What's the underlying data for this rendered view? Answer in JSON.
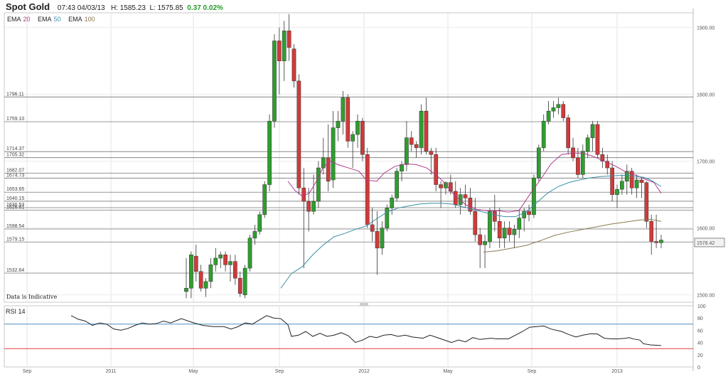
{
  "header": {
    "symbol": "Spot Gold",
    "datetime": "07:43 04/03/13",
    "high": "H: 1585.23",
    "low": "L: 1575.85",
    "change": "0.37",
    "change_pct": "0.02%"
  },
  "legend": [
    {
      "label": "EMA",
      "period": "20",
      "color": "#b03a8c"
    },
    {
      "label": "EMA",
      "period": "50",
      "color": "#3a8fa8"
    },
    {
      "label": "EMA",
      "period": "100",
      "color": "#8a7a50"
    }
  ],
  "note": "Data is Indicative",
  "rsi_label": "RSI 14",
  "last_price_label": "1578.42",
  "colors": {
    "up": "#2f9e2f",
    "down": "#d03a3a",
    "rsi": "#222222",
    "rsi_upper": "#4a90c0",
    "rsi_lower": "#e04040"
  },
  "chart_data": {
    "type": "candlestick",
    "price_axis": {
      "ticks": [
        1500,
        1600,
        1700,
        1800,
        1900
      ],
      "tick_labels": [
        "1500.00",
        "1600.00",
        "1700.00",
        "1800.00",
        "1900.00"
      ],
      "range": [
        1489,
        1922
      ]
    },
    "time_axis": {
      "labels": [
        "Sep",
        "2011",
        "May",
        "Sep",
        "2012",
        "May",
        "Sep",
        "2013"
      ]
    },
    "levels": [
      {
        "value": 1796.11,
        "label": "1796.11"
      },
      {
        "value": 1759.1,
        "label": "1759.10"
      },
      {
        "value": 1714.37,
        "label": "1714.37"
      },
      {
        "value": 1705.32,
        "label": "1705.32"
      },
      {
        "value": 1682.07,
        "label": "1682.07"
      },
      {
        "value": 1674.73,
        "label": "1674.73"
      },
      {
        "value": 1653.65,
        "label": "1653.65"
      },
      {
        "value": 1640.15,
        "label": "1640.15"
      },
      {
        "value": 1630.53,
        "label": "1630.53"
      },
      {
        "value": 1626.61,
        "label": "1626.61"
      },
      {
        "value": 1598.54,
        "label": "1598.54"
      },
      {
        "value": 1579.15,
        "label": "1579.15"
      },
      {
        "value": 1532.64,
        "label": "1532.64"
      }
    ],
    "candles": [
      [
        1505,
        1555,
        1495,
        1510
      ],
      [
        1510,
        1565,
        1495,
        1560
      ],
      [
        1558,
        1575,
        1520,
        1535
      ],
      [
        1535,
        1545,
        1505,
        1510
      ],
      [
        1510,
        1525,
        1497,
        1520
      ],
      [
        1520,
        1555,
        1510,
        1545
      ],
      [
        1545,
        1570,
        1535,
        1555
      ],
      [
        1555,
        1565,
        1540,
        1560
      ],
      [
        1560,
        1565,
        1535,
        1545
      ],
      [
        1545,
        1560,
        1520,
        1550
      ],
      [
        1550,
        1560,
        1515,
        1525
      ],
      [
        1525,
        1535,
        1497,
        1502
      ],
      [
        1500,
        1545,
        1495,
        1540
      ],
      [
        1540,
        1590,
        1535,
        1585
      ],
      [
        1585,
        1605,
        1575,
        1595
      ],
      [
        1595,
        1625,
        1590,
        1620
      ],
      [
        1620,
        1670,
        1615,
        1665
      ],
      [
        1665,
        1770,
        1655,
        1760
      ],
      [
        1760,
        1890,
        1750,
        1880
      ],
      [
        1880,
        1900,
        1800,
        1850
      ],
      [
        1850,
        1910,
        1820,
        1895
      ],
      [
        1895,
        1920,
        1850,
        1870
      ],
      [
        1868,
        1875,
        1810,
        1820
      ],
      [
        1820,
        1830,
        1650,
        1660
      ],
      [
        1660,
        1690,
        1540,
        1640
      ],
      [
        1640,
        1660,
        1595,
        1625
      ],
      [
        1625,
        1680,
        1620,
        1640
      ],
      [
        1640,
        1700,
        1630,
        1690
      ],
      [
        1690,
        1735,
        1680,
        1705
      ],
      [
        1705,
        1755,
        1655,
        1670
      ],
      [
        1672,
        1775,
        1660,
        1750
      ],
      [
        1750,
        1775,
        1730,
        1760
      ],
      [
        1760,
        1805,
        1740,
        1795
      ],
      [
        1795,
        1800,
        1720,
        1730
      ],
      [
        1730,
        1745,
        1690,
        1740
      ],
      [
        1740,
        1770,
        1720,
        1760
      ],
      [
        1760,
        1765,
        1700,
        1710
      ],
      [
        1710,
        1720,
        1600,
        1605
      ],
      [
        1605,
        1630,
        1580,
        1595
      ],
      [
        1595,
        1625,
        1530,
        1570
      ],
      [
        1570,
        1610,
        1560,
        1600
      ],
      [
        1600,
        1635,
        1595,
        1630
      ],
      [
        1630,
        1650,
        1620,
        1645
      ],
      [
        1645,
        1690,
        1640,
        1685
      ],
      [
        1685,
        1700,
        1670,
        1695
      ],
      [
        1695,
        1760,
        1685,
        1735
      ],
      [
        1735,
        1745,
        1715,
        1725
      ],
      [
        1725,
        1730,
        1705,
        1720
      ],
      [
        1720,
        1785,
        1710,
        1775
      ],
      [
        1775,
        1795,
        1710,
        1715
      ],
      [
        1715,
        1720,
        1680,
        1710
      ],
      [
        1710,
        1720,
        1655,
        1665
      ],
      [
        1665,
        1670,
        1630,
        1660
      ],
      [
        1660,
        1670,
        1650,
        1668
      ],
      [
        1668,
        1680,
        1650,
        1655
      ],
      [
        1655,
        1670,
        1630,
        1635
      ],
      [
        1635,
        1660,
        1620,
        1650
      ],
      [
        1650,
        1665,
        1630,
        1645
      ],
      [
        1645,
        1660,
        1620,
        1625
      ],
      [
        1625,
        1645,
        1580,
        1590
      ],
      [
        1590,
        1600,
        1540,
        1575
      ],
      [
        1575,
        1590,
        1540,
        1580
      ],
      [
        1580,
        1630,
        1570,
        1625
      ],
      [
        1625,
        1650,
        1595,
        1610
      ],
      [
        1610,
        1630,
        1570,
        1585
      ],
      [
        1585,
        1610,
        1570,
        1600
      ],
      [
        1600,
        1610,
        1580,
        1590
      ],
      [
        1590,
        1605,
        1570,
        1598
      ],
      [
        1598,
        1628,
        1585,
        1615
      ],
      [
        1615,
        1630,
        1595,
        1625
      ],
      [
        1625,
        1635,
        1610,
        1620
      ],
      [
        1620,
        1680,
        1615,
        1675
      ],
      [
        1675,
        1725,
        1670,
        1720
      ],
      [
        1720,
        1770,
        1715,
        1760
      ],
      [
        1760,
        1790,
        1755,
        1775
      ],
      [
        1775,
        1790,
        1765,
        1780
      ],
      [
        1780,
        1795,
        1770,
        1785
      ],
      [
        1785,
        1790,
        1760,
        1765
      ],
      [
        1765,
        1770,
        1710,
        1720
      ],
      [
        1720,
        1735,
        1700,
        1705
      ],
      [
        1705,
        1720,
        1675,
        1680
      ],
      [
        1680,
        1725,
        1675,
        1715
      ],
      [
        1715,
        1740,
        1705,
        1735
      ],
      [
        1735,
        1760,
        1715,
        1755
      ],
      [
        1755,
        1760,
        1705,
        1710
      ],
      [
        1710,
        1720,
        1690,
        1700
      ],
      [
        1700,
        1710,
        1680,
        1690
      ],
      [
        1690,
        1700,
        1640,
        1650
      ],
      [
        1650,
        1665,
        1630,
        1658
      ],
      [
        1658,
        1680,
        1650,
        1670
      ],
      [
        1670,
        1695,
        1650,
        1685
      ],
      [
        1685,
        1690,
        1650,
        1660
      ],
      [
        1660,
        1680,
        1645,
        1672
      ],
      [
        1672,
        1675,
        1645,
        1668
      ],
      [
        1668,
        1670,
        1600,
        1610
      ],
      [
        1610,
        1620,
        1560,
        1580
      ],
      [
        1580,
        1620,
        1570,
        1578
      ],
      [
        1578,
        1590,
        1570,
        1582
      ]
    ],
    "ema20": [
      [
        405,
        1670
      ],
      [
        415,
        1656
      ],
      [
        425,
        1648
      ],
      [
        435,
        1652
      ],
      [
        445,
        1670
      ],
      [
        455,
        1692
      ],
      [
        465,
        1700
      ],
      [
        475,
        1695
      ],
      [
        490,
        1690
      ],
      [
        505,
        1685
      ],
      [
        515,
        1672
      ],
      [
        530,
        1670
      ],
      [
        540,
        1682
      ],
      [
        555,
        1692
      ],
      [
        570,
        1696
      ],
      [
        585,
        1695
      ],
      [
        600,
        1690
      ],
      [
        615,
        1678
      ],
      [
        625,
        1668
      ],
      [
        640,
        1648
      ],
      [
        655,
        1635
      ],
      [
        670,
        1628
      ],
      [
        685,
        1626
      ],
      [
        700,
        1626
      ],
      [
        715,
        1624
      ],
      [
        730,
        1626
      ],
      [
        745,
        1650
      ],
      [
        760,
        1672
      ],
      [
        775,
        1696
      ],
      [
        790,
        1710
      ],
      [
        805,
        1712
      ],
      [
        820,
        1712
      ],
      [
        835,
        1707
      ],
      [
        850,
        1700
      ],
      [
        865,
        1693
      ],
      [
        880,
        1684
      ],
      [
        895,
        1679
      ],
      [
        910,
        1672
      ],
      [
        920,
        1668
      ],
      [
        930,
        1652
      ]
    ],
    "ema50": [
      [
        395,
        1510
      ],
      [
        410,
        1532
      ],
      [
        425,
        1542
      ],
      [
        440,
        1560
      ],
      [
        455,
        1575
      ],
      [
        470,
        1587
      ],
      [
        485,
        1592
      ],
      [
        500,
        1598
      ],
      [
        515,
        1603
      ],
      [
        530,
        1614
      ],
      [
        545,
        1624
      ],
      [
        560,
        1630
      ],
      [
        575,
        1633
      ],
      [
        590,
        1636
      ],
      [
        605,
        1637
      ],
      [
        620,
        1637
      ],
      [
        635,
        1636
      ],
      [
        650,
        1632
      ],
      [
        665,
        1628
      ],
      [
        680,
        1624
      ],
      [
        695,
        1620
      ],
      [
        710,
        1617
      ],
      [
        725,
        1617
      ],
      [
        740,
        1624
      ],
      [
        755,
        1638
      ],
      [
        770,
        1652
      ],
      [
        785,
        1662
      ],
      [
        800,
        1668
      ],
      [
        815,
        1672
      ],
      [
        830,
        1675
      ],
      [
        845,
        1677
      ],
      [
        860,
        1678
      ],
      [
        875,
        1679
      ],
      [
        890,
        1678
      ],
      [
        905,
        1676
      ],
      [
        915,
        1672
      ],
      [
        930,
        1662
      ]
    ],
    "ema100": [
      [
        680,
        1564
      ],
      [
        700,
        1566
      ],
      [
        720,
        1570
      ],
      [
        740,
        1574
      ],
      [
        760,
        1581
      ],
      [
        780,
        1589
      ],
      [
        800,
        1594
      ],
      [
        820,
        1598
      ],
      [
        840,
        1602
      ],
      [
        860,
        1606
      ],
      [
        880,
        1609
      ],
      [
        900,
        1612
      ],
      [
        915,
        1613
      ],
      [
        930,
        1610
      ]
    ],
    "rsi": {
      "ticks": [
        0,
        20,
        40,
        60,
        80,
        100
      ],
      "upper": 70,
      "lower": 30,
      "series_label": "RSI 14",
      "values": [
        [
          100,
          84
        ],
        [
          110,
          78
        ],
        [
          120,
          75
        ],
        [
          130,
          68
        ],
        [
          140,
          72
        ],
        [
          150,
          70
        ],
        [
          160,
          62
        ],
        [
          170,
          60
        ],
        [
          180,
          63
        ],
        [
          190,
          68
        ],
        [
          200,
          72
        ],
        [
          210,
          70
        ],
        [
          220,
          71
        ],
        [
          230,
          75
        ],
        [
          240,
          72
        ],
        [
          255,
          79
        ],
        [
          270,
          73
        ],
        [
          285,
          68
        ],
        [
          300,
          66
        ],
        [
          315,
          66
        ],
        [
          325,
          62
        ],
        [
          335,
          66
        ],
        [
          345,
          72
        ],
        [
          355,
          70
        ],
        [
          365,
          77
        ],
        [
          375,
          84
        ],
        [
          385,
          80
        ],
        [
          395,
          79
        ],
        [
          405,
          69
        ],
        [
          410,
          50
        ],
        [
          420,
          52
        ],
        [
          430,
          58
        ],
        [
          440,
          50
        ],
        [
          450,
          55
        ],
        [
          460,
          50
        ],
        [
          470,
          52
        ],
        [
          480,
          56
        ],
        [
          490,
          51
        ],
        [
          500,
          40
        ],
        [
          510,
          44
        ],
        [
          520,
          50
        ],
        [
          530,
          48
        ],
        [
          540,
          52
        ],
        [
          550,
          53
        ],
        [
          560,
          50
        ],
        [
          570,
          52
        ],
        [
          580,
          49
        ],
        [
          595,
          47
        ],
        [
          605,
          52
        ],
        [
          615,
          48
        ],
        [
          625,
          44
        ],
        [
          635,
          40
        ],
        [
          645,
          44
        ],
        [
          655,
          41
        ],
        [
          665,
          48
        ],
        [
          675,
          45
        ],
        [
          690,
          47
        ],
        [
          700,
          46
        ],
        [
          715,
          46
        ],
        [
          725,
          52
        ],
        [
          735,
          58
        ],
        [
          745,
          65
        ],
        [
          755,
          66
        ],
        [
          765,
          67
        ],
        [
          775,
          62
        ],
        [
          790,
          58
        ],
        [
          800,
          53
        ],
        [
          810,
          49
        ],
        [
          820,
          52
        ],
        [
          830,
          54
        ],
        [
          840,
          54
        ],
        [
          850,
          47
        ],
        [
          860,
          46
        ],
        [
          870,
          46
        ],
        [
          880,
          47
        ],
        [
          885,
          48
        ],
        [
          890,
          46
        ],
        [
          900,
          44
        ],
        [
          905,
          38
        ],
        [
          915,
          36
        ],
        [
          930,
          35
        ]
      ]
    },
    "grid": true
  }
}
